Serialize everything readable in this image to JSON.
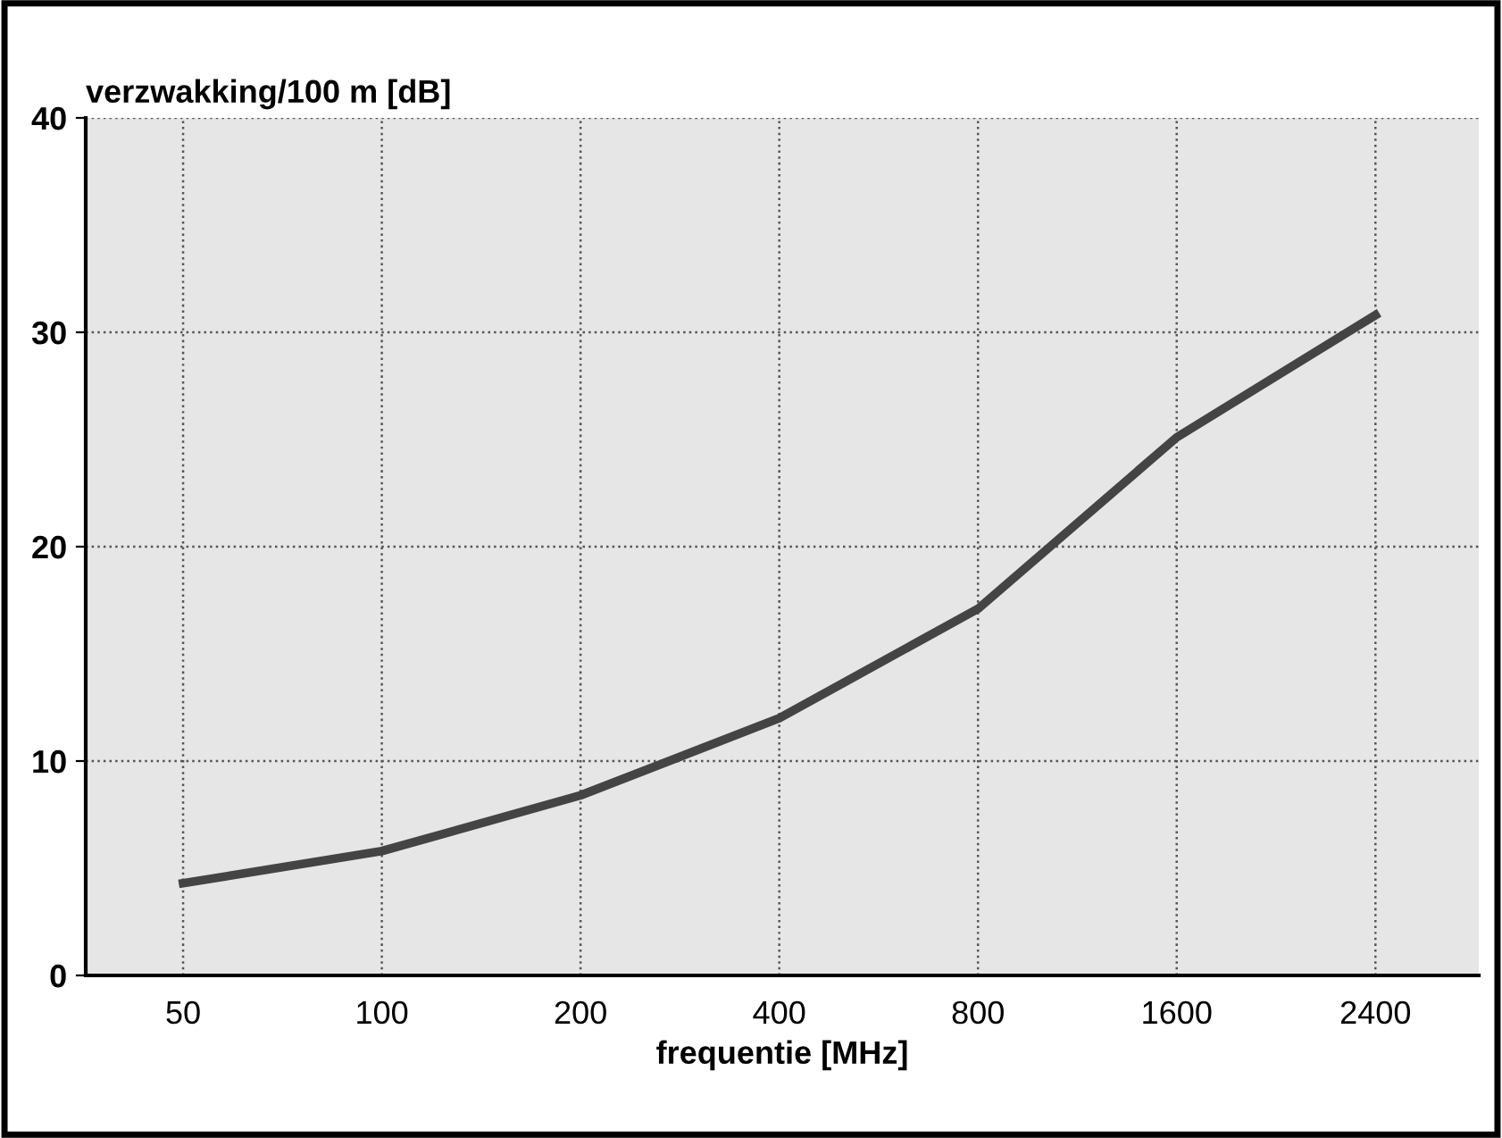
{
  "chart_data": {
    "type": "line",
    "ylabel": "verzwakking/100 m [dB]",
    "xlabel": "frequentie [MHz]",
    "categories": [
      "50",
      "100",
      "200",
      "400",
      "800",
      "1600",
      "2400"
    ],
    "series": [
      {
        "color": "#444444",
        "values": [
          4.3,
          5.8,
          8.4,
          12.0,
          17.1,
          25.1,
          30.8
        ]
      }
    ],
    "ylim": [
      0,
      40
    ],
    "yticks": [
      0,
      10,
      20,
      30,
      40
    ],
    "grid": true,
    "marker": "none",
    "line_style": "solid"
  }
}
